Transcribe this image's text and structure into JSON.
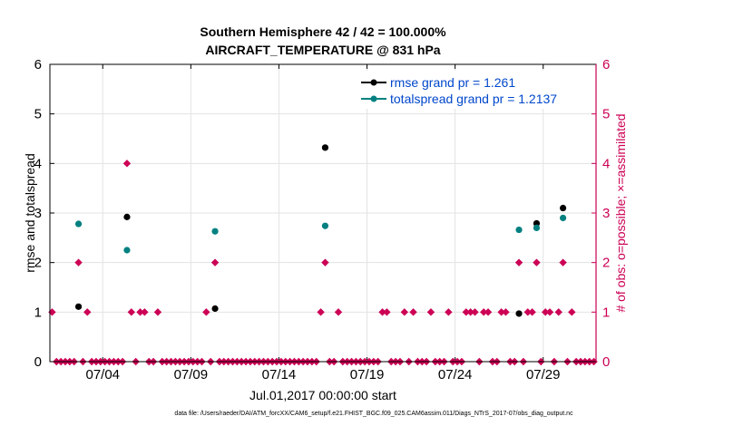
{
  "chart_data": {
    "type": "scatter",
    "title": "Southern Hemisphere 42 / 42 = 100.000%",
    "subtitle": "AIRCRAFT_TEMPERATURE @ 831 hPa",
    "xlabel": "Jul.01,2017 00:00:00 start",
    "ylabel": "rmse and totalspread",
    "y2label": "# of obs: o=possible; ×=assimilated",
    "xlim": [
      0,
      31
    ],
    "ylim": [
      0,
      6
    ],
    "y2lim": [
      0,
      6
    ],
    "x_ticks": [
      3,
      8,
      13,
      18,
      23,
      28
    ],
    "x_tick_labels": [
      "07/04",
      "07/09",
      "07/14",
      "07/19",
      "07/24",
      "07/29"
    ],
    "y_ticks": [
      0,
      1,
      2,
      3,
      4,
      5,
      6
    ],
    "y_tick_labels": [
      "0",
      "1",
      "2",
      "3",
      "4",
      "5",
      "6"
    ],
    "y2_tick_labels": [
      "0",
      "1",
      "2",
      "3",
      "4",
      "5",
      "6"
    ],
    "grid": true,
    "legend_position": "top-right",
    "series": [
      {
        "name": "rmse grand pr = 1.261",
        "color": "#000000",
        "points": [
          [
            1.625,
            1.11
          ],
          [
            4.375,
            2.92
          ],
          [
            9.375,
            1.07
          ],
          [
            15.625,
            4.32
          ],
          [
            26.625,
            0.97
          ],
          [
            27.625,
            2.79
          ],
          [
            29.125,
            3.1
          ]
        ]
      },
      {
        "name": "totalspread grand pr = 1.2137",
        "color": "#008080",
        "points": [
          [
            1.625,
            2.78
          ],
          [
            4.375,
            2.25
          ],
          [
            9.375,
            2.63
          ],
          [
            15.625,
            2.74
          ],
          [
            26.625,
            2.66
          ],
          [
            27.625,
            2.7
          ],
          [
            29.125,
            2.9
          ]
        ]
      }
    ],
    "obs_count": {
      "name": "# of obs",
      "color": "#cc0055",
      "x_start": 0.125,
      "x_step": 0.25,
      "nonzero": [
        [
          0.125,
          1
        ],
        [
          1.625,
          2
        ],
        [
          2.125,
          1
        ],
        [
          4.375,
          4
        ],
        [
          4.625,
          1
        ],
        [
          5.125,
          1
        ],
        [
          5.375,
          1
        ],
        [
          6.125,
          1
        ],
        [
          8.875,
          1
        ],
        [
          9.375,
          2
        ],
        [
          15.375,
          1
        ],
        [
          15.625,
          2
        ],
        [
          16.375,
          1
        ],
        [
          18.875,
          1
        ],
        [
          19.125,
          1
        ],
        [
          20.125,
          1
        ],
        [
          20.625,
          1
        ],
        [
          21.625,
          1
        ],
        [
          22.625,
          1
        ],
        [
          23.625,
          1
        ],
        [
          23.875,
          1
        ],
        [
          24.125,
          1
        ],
        [
          24.625,
          1
        ],
        [
          24.875,
          1
        ],
        [
          25.625,
          1
        ],
        [
          25.875,
          1
        ],
        [
          26.625,
          2
        ],
        [
          27.125,
          1
        ],
        [
          27.375,
          1
        ],
        [
          27.625,
          2
        ],
        [
          28.125,
          1
        ],
        [
          28.375,
          1
        ],
        [
          28.875,
          1
        ],
        [
          29.125,
          2
        ],
        [
          29.625,
          1
        ]
      ]
    },
    "footer": "data file: /Users/raeder/DAI/ATM_forcXX/CAM6_setup/f.e21.FHIST_BGC.f09_025.CAM6assim.011/Diags_NTrS_2017-07/obs_diag_output.nc"
  }
}
